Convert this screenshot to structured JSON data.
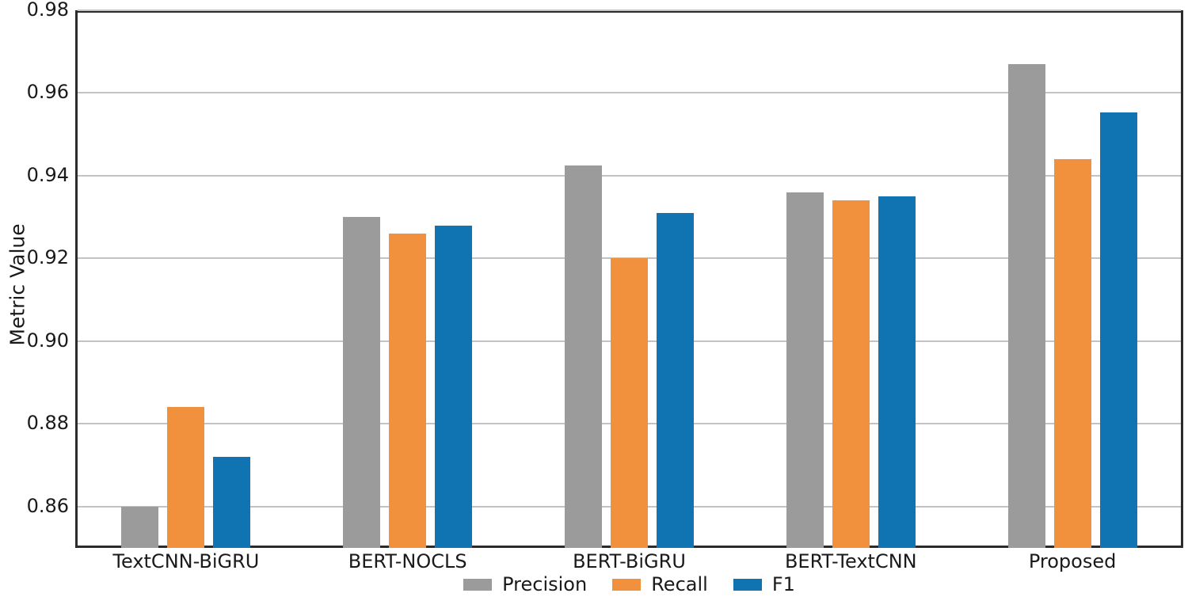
{
  "chart_data": {
    "type": "bar",
    "title": "",
    "xlabel": "",
    "ylabel": "Metric Value",
    "categories": [
      "TextCNN-BiGRU",
      "BERT-NOCLS",
      "BERT-BiGRU",
      "BERT-TextCNN",
      "Proposed"
    ],
    "series": [
      {
        "name": "Precision",
        "color": "#9b9b9b",
        "values": [
          0.86,
          0.93,
          0.9425,
          0.936,
          0.967
        ]
      },
      {
        "name": "Recall",
        "color": "#f2913d",
        "values": [
          0.884,
          0.926,
          0.92,
          0.934,
          0.944
        ]
      },
      {
        "name": "F1",
        "color": "#1073b2",
        "values": [
          0.872,
          0.928,
          0.931,
          0.935,
          0.9553
        ]
      }
    ],
    "ylim": [
      0.85,
      0.98
    ],
    "yticks": [
      "0.86",
      "0.88",
      "0.90",
      "0.92",
      "0.94",
      "0.96",
      "0.98"
    ],
    "grid": true,
    "grid_color": "#c3c3c3",
    "spine_color": "#2b2b2b",
    "legend_position": "bottom-center"
  }
}
